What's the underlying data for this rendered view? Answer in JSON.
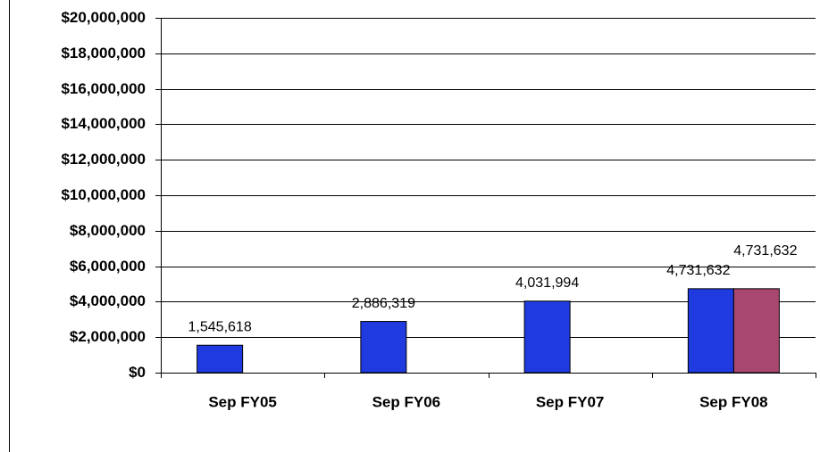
{
  "chart_data": {
    "type": "bar",
    "categories": [
      "Sep FY05",
      "Sep FY06",
      "Sep FY07",
      "Sep FY08"
    ],
    "series": [
      {
        "color": "#1f3be0",
        "values": [
          1545618,
          2886319,
          4031994,
          4731632
        ],
        "value_labels": [
          "1,545,618",
          "2,886,319",
          "4,031,994",
          "4,731,632"
        ]
      },
      {
        "color": "#a8476f",
        "values": [
          null,
          null,
          null,
          4731632
        ],
        "value_labels": [
          null,
          null,
          null,
          "4,731,632"
        ]
      }
    ],
    "ylim": [
      0,
      20000000
    ],
    "yticks": [
      {
        "value": 0,
        "label": "$0"
      },
      {
        "value": 2000000,
        "label": "$2,000,000"
      },
      {
        "value": 4000000,
        "label": "$4,000,000"
      },
      {
        "value": 6000000,
        "label": "$6,000,000"
      },
      {
        "value": 8000000,
        "label": "$8,000,000"
      },
      {
        "value": 10000000,
        "label": "$10,000,000"
      },
      {
        "value": 12000000,
        "label": "$12,000,000"
      },
      {
        "value": 14000000,
        "label": "$14,000,000"
      },
      {
        "value": 16000000,
        "label": "$16,000,000"
      },
      {
        "value": 18000000,
        "label": "$18,000,000"
      },
      {
        "value": 20000000,
        "label": "$20,000,000"
      }
    ],
    "grid": true
  }
}
